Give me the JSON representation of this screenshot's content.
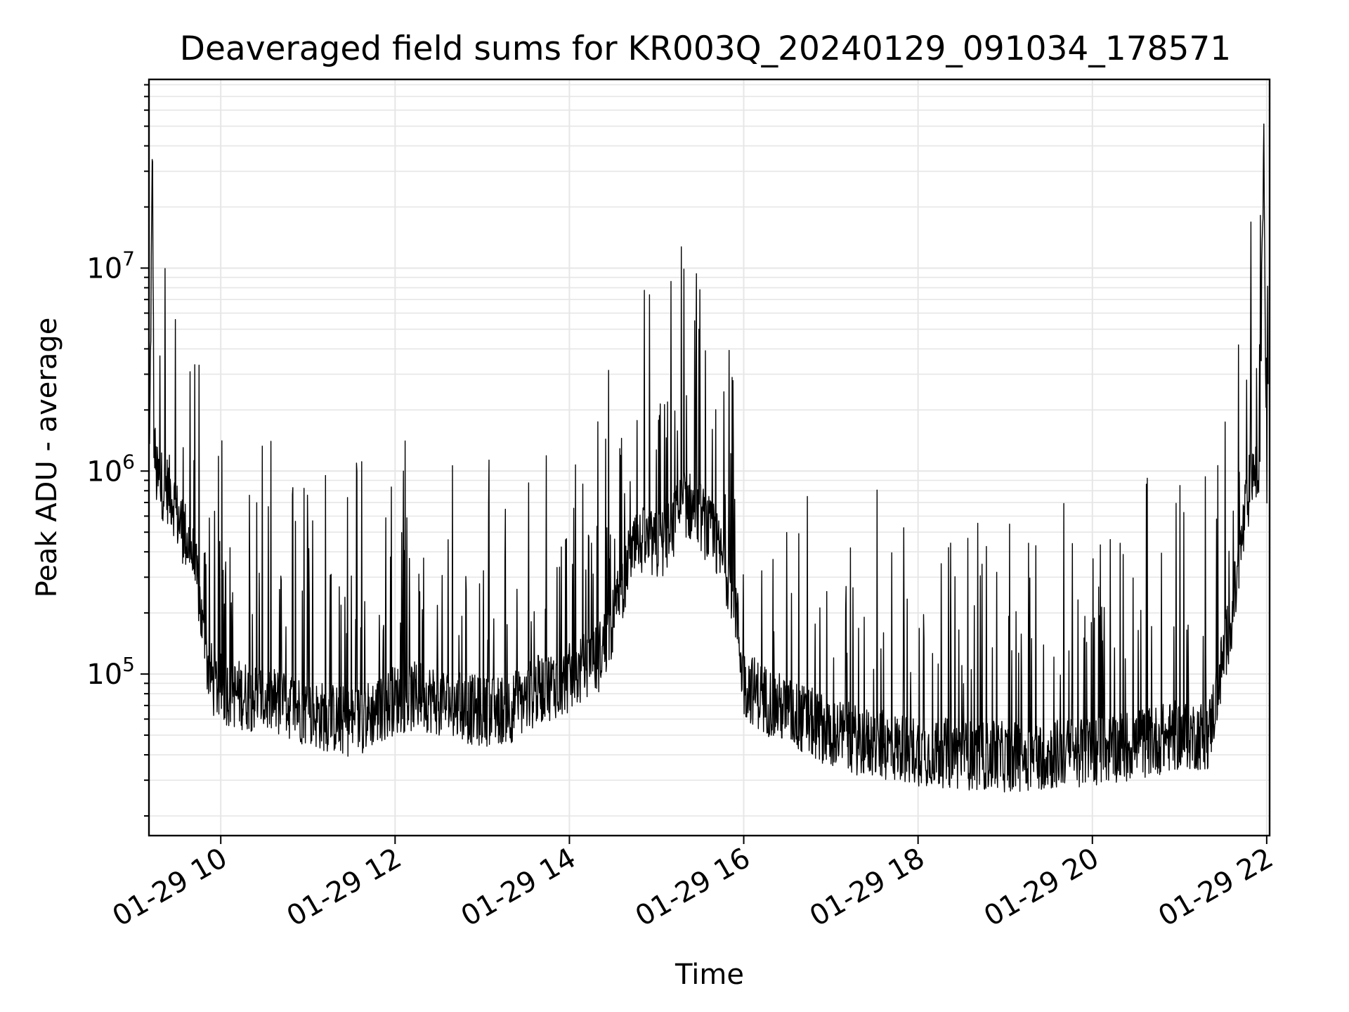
{
  "chart_data": {
    "type": "line",
    "title": "Deaveraged field sums for KR003Q_20240129_091034_178571",
    "xlabel": "Time",
    "ylabel": "Peak ADU - average",
    "yscale": "log",
    "grid": true,
    "grid_minor": true,
    "line_color": "#000000",
    "xlim": [
      "01-29 09:10:34",
      "01-29 22:02:00"
    ],
    "ylim": [
      16000,
      85000000
    ],
    "x_ticks": [
      {
        "t": "01-29 10:00",
        "label": "01-29 10"
      },
      {
        "t": "01-29 12:00",
        "label": "01-29 12"
      },
      {
        "t": "01-29 14:00",
        "label": "01-29 14"
      },
      {
        "t": "01-29 16:00",
        "label": "01-29 16"
      },
      {
        "t": "01-29 18:00",
        "label": "01-29 18"
      },
      {
        "t": "01-29 20:00",
        "label": "01-29 20"
      },
      {
        "t": "01-29 22:00",
        "label": "01-29 22"
      }
    ],
    "y_ticks": [
      {
        "value": 100000,
        "base": "10",
        "exp": "5"
      },
      {
        "value": 1000000,
        "base": "10",
        "exp": "6"
      },
      {
        "value": 10000000,
        "base": "10",
        "exp": "7"
      }
    ],
    "series": [
      {
        "x": [
          "01-29 09:11",
          "01-29 09:13",
          "01-29 09:14",
          "01-29 09:16",
          "01-29 09:20",
          "01-29 09:25",
          "01-29 09:28",
          "01-29 09:30",
          "01-29 09:35",
          "01-29 09:40",
          "01-29 09:45",
          "01-29 09:48",
          "01-29 09:50",
          "01-29 09:53",
          "01-29 09:55",
          "01-29 10:00",
          "01-29 10:10",
          "01-29 10:20",
          "01-29 10:30",
          "01-29 10:40",
          "01-29 10:50",
          "01-29 11:00",
          "01-29 11:10",
          "01-29 11:20",
          "01-29 11:30",
          "01-29 11:40",
          "01-29 11:50",
          "01-29 12:00",
          "01-29 12:20",
          "01-29 12:40",
          "01-29 13:00",
          "01-29 13:20",
          "01-29 13:40",
          "01-29 14:00",
          "01-29 14:20",
          "01-29 14:30",
          "01-29 14:40",
          "01-29 14:50",
          "01-29 15:00",
          "01-29 15:10",
          "01-29 15:15",
          "01-29 15:20",
          "01-29 15:30",
          "01-29 15:40",
          "01-29 15:50",
          "01-29 15:55",
          "01-29 16:00",
          "01-29 16:15",
          "01-29 16:30",
          "01-29 16:45",
          "01-29 17:00",
          "01-29 17:15",
          "01-29 17:30",
          "01-29 18:00",
          "01-29 18:30",
          "01-29 19:00",
          "01-29 19:30",
          "01-29 20:00",
          "01-29 20:30",
          "01-29 21:00",
          "01-29 21:20",
          "01-29 21:25",
          "01-29 21:30",
          "01-29 21:35",
          "01-29 21:40",
          "01-29 21:45",
          "01-29 21:50",
          "01-29 21:55",
          "01-29 21:58",
          "01-29 22:00",
          "01-29 22:01"
        ],
        "y": [
          1200000,
          40000000,
          1400000,
          900000,
          850000,
          800000,
          700000,
          600000,
          500000,
          400000,
          250000,
          150000,
          120000,
          100000,
          90000,
          85000,
          80000,
          78000,
          75000,
          72000,
          70000,
          65000,
          62000,
          60000,
          58000,
          62000,
          68000,
          75000,
          78000,
          70000,
          65000,
          68000,
          85000,
          95000,
          120000,
          180000,
          350000,
          450000,
          420000,
          480000,
          650000,
          700000,
          600000,
          450000,
          300000,
          200000,
          90000,
          75000,
          65000,
          58000,
          52000,
          48000,
          45000,
          42000,
          40000,
          39000,
          40000,
          42000,
          45000,
          50000,
          50000,
          75000,
          120000,
          180000,
          300000,
          600000,
          1000000,
          900000,
          50000000,
          800000,
          750000
        ]
      }
    ]
  }
}
